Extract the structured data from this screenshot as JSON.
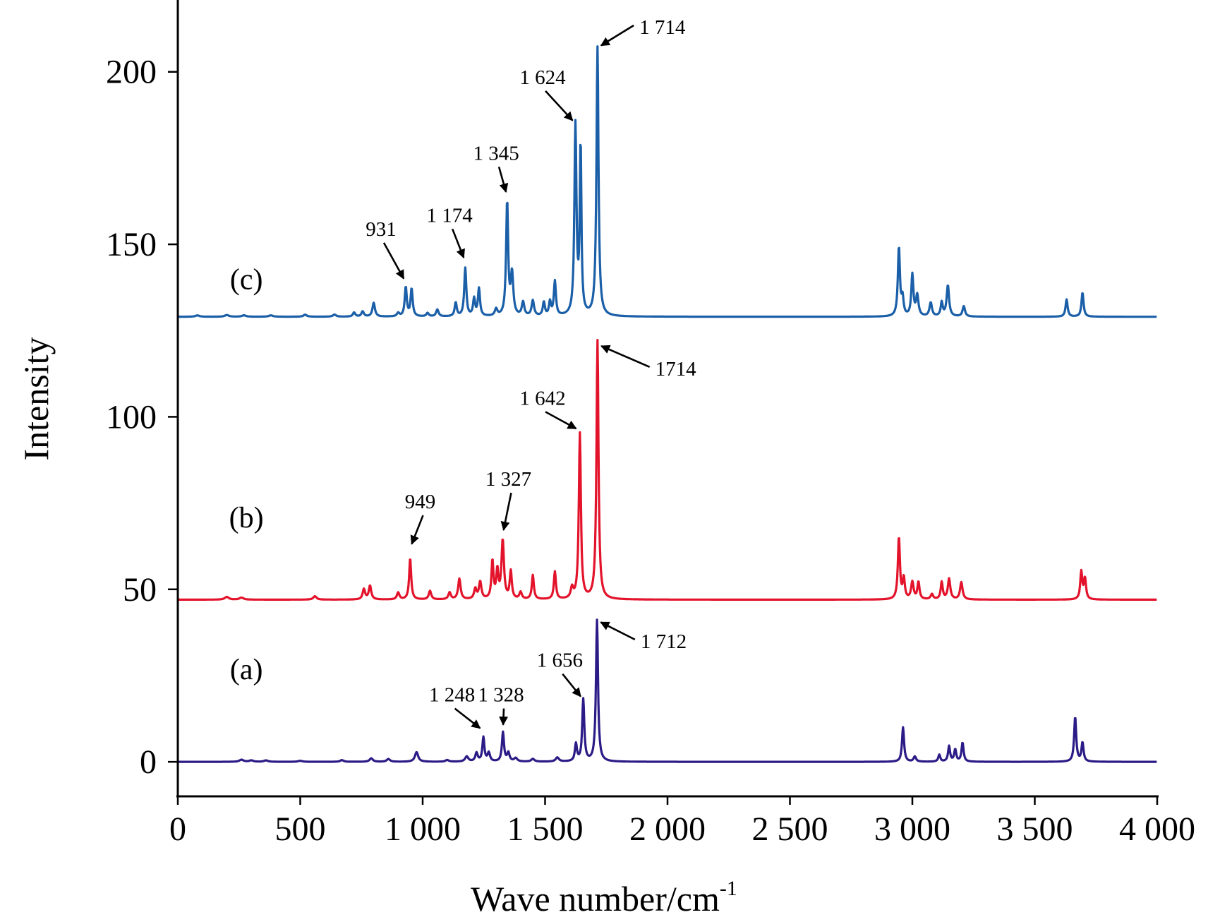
{
  "chart_data": {
    "type": "line",
    "xlabel": "Wave number/cm",
    "xlabel_sup": "-1",
    "ylabel": "Intensity",
    "xlim": [
      0,
      4000
    ],
    "ylim": [
      -10,
      220
    ],
    "x_ticks": [
      0,
      500,
      1000,
      1500,
      2000,
      2500,
      3000,
      3500,
      4000
    ],
    "x_tick_labels": [
      "0",
      "500",
      "1 000",
      "1 500",
      "2 000",
      "2 500",
      "3 000",
      "3 500",
      "4 000"
    ],
    "y_ticks": [
      0,
      50,
      100,
      150,
      200
    ],
    "y_tick_labels": [
      "0",
      "50",
      "100",
      "150",
      "200"
    ],
    "grid": false,
    "legend": "none",
    "series": [
      {
        "name": "(a)",
        "color": "#2b1b86",
        "baseline": 0,
        "tag_x": 280,
        "tag_y": 24,
        "peaks": [
          {
            "x": 260,
            "h": 0.6,
            "w": 10
          },
          {
            "x": 300,
            "h": 0.4,
            "w": 10
          },
          {
            "x": 360,
            "h": 0.4,
            "w": 10
          },
          {
            "x": 500,
            "h": 0.3,
            "w": 10
          },
          {
            "x": 670,
            "h": 0.5,
            "w": 8
          },
          {
            "x": 790,
            "h": 1.0,
            "w": 8
          },
          {
            "x": 860,
            "h": 0.8,
            "w": 8
          },
          {
            "x": 975,
            "h": 2.8,
            "w": 8
          },
          {
            "x": 1100,
            "h": 0.5,
            "w": 8
          },
          {
            "x": 1180,
            "h": 1.5,
            "w": 8
          },
          {
            "x": 1220,
            "h": 2.5,
            "w": 6
          },
          {
            "x": 1248,
            "h": 7.0,
            "w": 5
          },
          {
            "x": 1270,
            "h": 2.5,
            "w": 6
          },
          {
            "x": 1328,
            "h": 8.5,
            "w": 5
          },
          {
            "x": 1350,
            "h": 2.5,
            "w": 6
          },
          {
            "x": 1380,
            "h": 1.0,
            "w": 8
          },
          {
            "x": 1450,
            "h": 0.8,
            "w": 8
          },
          {
            "x": 1550,
            "h": 1.2,
            "w": 8
          },
          {
            "x": 1626,
            "h": 5.0,
            "w": 5
          },
          {
            "x": 1656,
            "h": 18.0,
            "w": 5
          },
          {
            "x": 1712,
            "h": 41.0,
            "w": 5
          },
          {
            "x": 2962,
            "h": 10.0,
            "w": 5
          },
          {
            "x": 3010,
            "h": 1.5,
            "w": 6
          },
          {
            "x": 3110,
            "h": 2.0,
            "w": 5
          },
          {
            "x": 3150,
            "h": 4.5,
            "w": 5
          },
          {
            "x": 3175,
            "h": 3.5,
            "w": 5
          },
          {
            "x": 3205,
            "h": 5.5,
            "w": 5
          },
          {
            "x": 3665,
            "h": 13.0,
            "w": 5
          },
          {
            "x": 3695,
            "h": 5.5,
            "w": 5
          }
        ]
      },
      {
        "name": "(b)",
        "color": "#e3132b",
        "baseline": 47,
        "tag_x": 280,
        "tag_y": 68,
        "peaks": [
          {
            "x": 200,
            "h": 0.8,
            "w": 10
          },
          {
            "x": 260,
            "h": 0.6,
            "w": 10
          },
          {
            "x": 560,
            "h": 1.0,
            "w": 8
          },
          {
            "x": 760,
            "h": 3.0,
            "w": 6
          },
          {
            "x": 785,
            "h": 4.0,
            "w": 6
          },
          {
            "x": 900,
            "h": 2.0,
            "w": 6
          },
          {
            "x": 949,
            "h": 12.0,
            "w": 5
          },
          {
            "x": 1030,
            "h": 2.5,
            "w": 6
          },
          {
            "x": 1110,
            "h": 2.0,
            "w": 6
          },
          {
            "x": 1150,
            "h": 6.0,
            "w": 6
          },
          {
            "x": 1215,
            "h": 3.0,
            "w": 6
          },
          {
            "x": 1235,
            "h": 5.0,
            "w": 6
          },
          {
            "x": 1285,
            "h": 11.0,
            "w": 5
          },
          {
            "x": 1305,
            "h": 8.0,
            "w": 5
          },
          {
            "x": 1327,
            "h": 17.0,
            "w": 6
          },
          {
            "x": 1360,
            "h": 8.0,
            "w": 5
          },
          {
            "x": 1400,
            "h": 2.0,
            "w": 6
          },
          {
            "x": 1450,
            "h": 7.0,
            "w": 5
          },
          {
            "x": 1540,
            "h": 8.0,
            "w": 5
          },
          {
            "x": 1610,
            "h": 3.0,
            "w": 6
          },
          {
            "x": 1642,
            "h": 48.0,
            "w": 5
          },
          {
            "x": 1714,
            "h": 75.0,
            "w": 5
          },
          {
            "x": 2945,
            "h": 18.0,
            "w": 5
          },
          {
            "x": 2965,
            "h": 6.0,
            "w": 5
          },
          {
            "x": 3000,
            "h": 5.0,
            "w": 6
          },
          {
            "x": 3025,
            "h": 5.0,
            "w": 5
          },
          {
            "x": 3080,
            "h": 1.5,
            "w": 6
          },
          {
            "x": 3120,
            "h": 5.0,
            "w": 5
          },
          {
            "x": 3150,
            "h": 6.0,
            "w": 6
          },
          {
            "x": 3200,
            "h": 5.0,
            "w": 6
          },
          {
            "x": 3690,
            "h": 8.0,
            "w": 5
          },
          {
            "x": 3705,
            "h": 6.0,
            "w": 5
          }
        ]
      },
      {
        "name": "(c)",
        "color": "#1a5fa8",
        "baseline": 129,
        "tag_x": 280,
        "tag_y": 137,
        "peaks": [
          {
            "x": 80,
            "h": 0.4,
            "w": 10
          },
          {
            "x": 200,
            "h": 0.5,
            "w": 10
          },
          {
            "x": 270,
            "h": 0.4,
            "w": 10
          },
          {
            "x": 380,
            "h": 0.4,
            "w": 10
          },
          {
            "x": 520,
            "h": 0.6,
            "w": 8
          },
          {
            "x": 640,
            "h": 0.6,
            "w": 8
          },
          {
            "x": 720,
            "h": 1.2,
            "w": 6
          },
          {
            "x": 755,
            "h": 1.5,
            "w": 6
          },
          {
            "x": 800,
            "h": 4.0,
            "w": 6
          },
          {
            "x": 900,
            "h": 1.0,
            "w": 6
          },
          {
            "x": 931,
            "h": 8.5,
            "w": 5
          },
          {
            "x": 955,
            "h": 8.0,
            "w": 5
          },
          {
            "x": 1020,
            "h": 1.0,
            "w": 6
          },
          {
            "x": 1060,
            "h": 2.0,
            "w": 6
          },
          {
            "x": 1135,
            "h": 4.0,
            "w": 5
          },
          {
            "x": 1174,
            "h": 14.0,
            "w": 5
          },
          {
            "x": 1210,
            "h": 5.0,
            "w": 5
          },
          {
            "x": 1230,
            "h": 8.0,
            "w": 5
          },
          {
            "x": 1300,
            "h": 2.0,
            "w": 6
          },
          {
            "x": 1345,
            "h": 33.0,
            "w": 5
          },
          {
            "x": 1365,
            "h": 12.0,
            "w": 6
          },
          {
            "x": 1410,
            "h": 4.0,
            "w": 6
          },
          {
            "x": 1450,
            "h": 4.5,
            "w": 6
          },
          {
            "x": 1495,
            "h": 4.0,
            "w": 5
          },
          {
            "x": 1520,
            "h": 4.0,
            "w": 5
          },
          {
            "x": 1540,
            "h": 10.0,
            "w": 5
          },
          {
            "x": 1624,
            "h": 55.0,
            "w": 5
          },
          {
            "x": 1645,
            "h": 49.0,
            "w": 4
          },
          {
            "x": 1714,
            "h": 78.0,
            "w": 5
          },
          {
            "x": 2945,
            "h": 20.0,
            "w": 5
          },
          {
            "x": 2960,
            "h": 5.0,
            "w": 5
          },
          {
            "x": 3000,
            "h": 12.0,
            "w": 5
          },
          {
            "x": 3020,
            "h": 6.0,
            "w": 6
          },
          {
            "x": 3075,
            "h": 4.0,
            "w": 6
          },
          {
            "x": 3120,
            "h": 4.0,
            "w": 5
          },
          {
            "x": 3145,
            "h": 9.0,
            "w": 6
          },
          {
            "x": 3210,
            "h": 3.0,
            "w": 6
          },
          {
            "x": 3630,
            "h": 5.0,
            "w": 5
          },
          {
            "x": 3695,
            "h": 7.0,
            "w": 5
          }
        ]
      }
    ],
    "annotations": [
      {
        "text": "1 712",
        "series": 0,
        "target_x": 1712,
        "target_y": 41,
        "label_x": 1890,
        "label_y": 33,
        "anchor": "start"
      },
      {
        "text": "1 656",
        "series": 0,
        "target_x": 1656,
        "target_y": 18,
        "label_x": 1560,
        "label_y": 27.5,
        "anchor": "middle"
      },
      {
        "text": "1 248",
        "series": 0,
        "target_x": 1248,
        "target_y": 9,
        "label_x": 1120,
        "label_y": 17.5,
        "anchor": "middle"
      },
      {
        "text": "1 328",
        "series": 0,
        "target_x": 1328,
        "target_y": 9.5,
        "label_x": 1320,
        "label_y": 17.5,
        "anchor": "middle"
      },
      {
        "text": "949",
        "series": 1,
        "target_x": 949,
        "target_y": 62,
        "label_x": 990,
        "label_y": 73.5,
        "anchor": "middle"
      },
      {
        "text": "1 327",
        "series": 1,
        "target_x": 1327,
        "target_y": 66,
        "label_x": 1350,
        "label_y": 80,
        "anchor": "middle"
      },
      {
        "text": "1 642",
        "series": 1,
        "target_x": 1642,
        "target_y": 96,
        "label_x": 1490,
        "label_y": 103.5,
        "anchor": "middle"
      },
      {
        "text": "1714",
        "series": 1,
        "target_x": 1714,
        "target_y": 121,
        "label_x": 1950,
        "label_y": 112,
        "anchor": "start"
      },
      {
        "text": "931",
        "series": 2,
        "target_x": 931,
        "target_y": 139,
        "label_x": 830,
        "label_y": 152.5,
        "anchor": "middle"
      },
      {
        "text": "1 174",
        "series": 2,
        "target_x": 1174,
        "target_y": 145,
        "label_x": 1110,
        "label_y": 156.5,
        "anchor": "middle"
      },
      {
        "text": "1 345",
        "series": 2,
        "target_x": 1345,
        "target_y": 164,
        "label_x": 1300,
        "label_y": 174.5,
        "anchor": "middle"
      },
      {
        "text": "1 624",
        "series": 2,
        "target_x": 1624,
        "target_y": 185,
        "label_x": 1490,
        "label_y": 196.5,
        "anchor": "middle"
      },
      {
        "text": "1 714",
        "series": 2,
        "target_x": 1714,
        "target_y": 207,
        "label_x": 1885,
        "label_y": 211,
        "anchor": "start"
      }
    ]
  }
}
